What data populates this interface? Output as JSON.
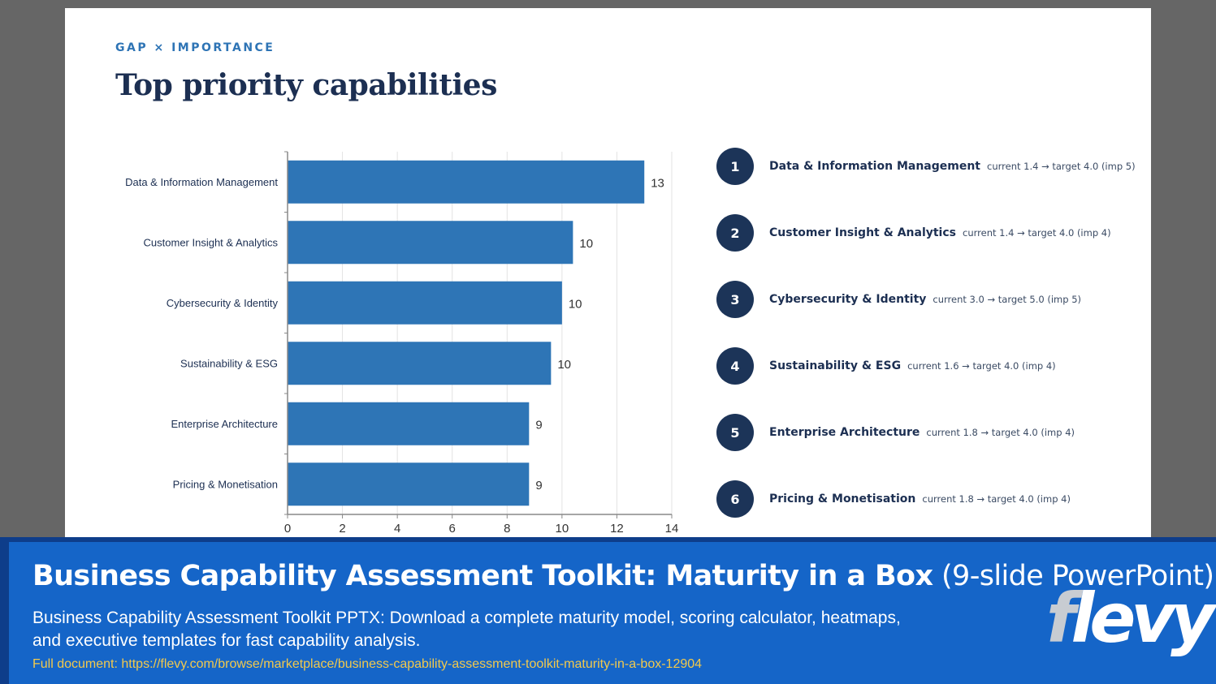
{
  "slide": {
    "eyebrow": "GAP × IMPORTANCE",
    "title": "Top priority capabilities"
  },
  "chart_data": {
    "type": "bar",
    "orientation": "horizontal",
    "categories": [
      "Data & Information Management",
      "Customer Insight & Analytics",
      "Cybersecurity & Identity",
      "Sustainability & ESG",
      "Enterprise Architecture",
      "Pricing & Monetisation"
    ],
    "values": [
      13,
      10.4,
      10,
      9.6,
      8.8,
      8.8
    ],
    "data_labels": [
      "13",
      "10",
      "10",
      "10",
      "9",
      "9"
    ],
    "xlim": [
      0,
      14
    ],
    "xticks": [
      0,
      2,
      4,
      6,
      8,
      10,
      12,
      14
    ],
    "grid": true,
    "bar_color": "#2e75b6"
  },
  "ranking": [
    {
      "num": "1",
      "name": "Data & Information Management",
      "detail": "current 1.4 → target 4.0 (imp 5)"
    },
    {
      "num": "2",
      "name": "Customer Insight & Analytics",
      "detail": "current 1.4 → target 4.0 (imp 4)"
    },
    {
      "num": "3",
      "name": "Cybersecurity & Identity",
      "detail": "current 3.0 → target 5.0 (imp 5)"
    },
    {
      "num": "4",
      "name": "Sustainability & ESG",
      "detail": "current 1.6 → target 4.0 (imp 4)"
    },
    {
      "num": "5",
      "name": "Enterprise Architecture",
      "detail": "current 1.8 → target 4.0 (imp 4)"
    },
    {
      "num": "6",
      "name": "Pricing & Monetisation",
      "detail": "current 1.8 → target 4.0 (imp 4)"
    }
  ],
  "banner": {
    "title_bold": "Business Capability Assessment Toolkit: Maturity in a Box",
    "title_light": "(9-slide PowerPoint)",
    "description": "Business Capability Assessment Toolkit PPTX: Download a complete maturity model, scoring calculator, heatmaps, and executive templates for fast capability analysis.",
    "link": "Full document: https://flevy.com/browse/marketplace/business-capability-assessment-toolkit-maturity-in-a-box-12904",
    "logo_f": "f",
    "logo_rest": "levy"
  },
  "colors": {
    "navy": "#1c3458",
    "accent": "#2e74b5",
    "banner": "#1565c8",
    "link": "#f2c94c"
  }
}
